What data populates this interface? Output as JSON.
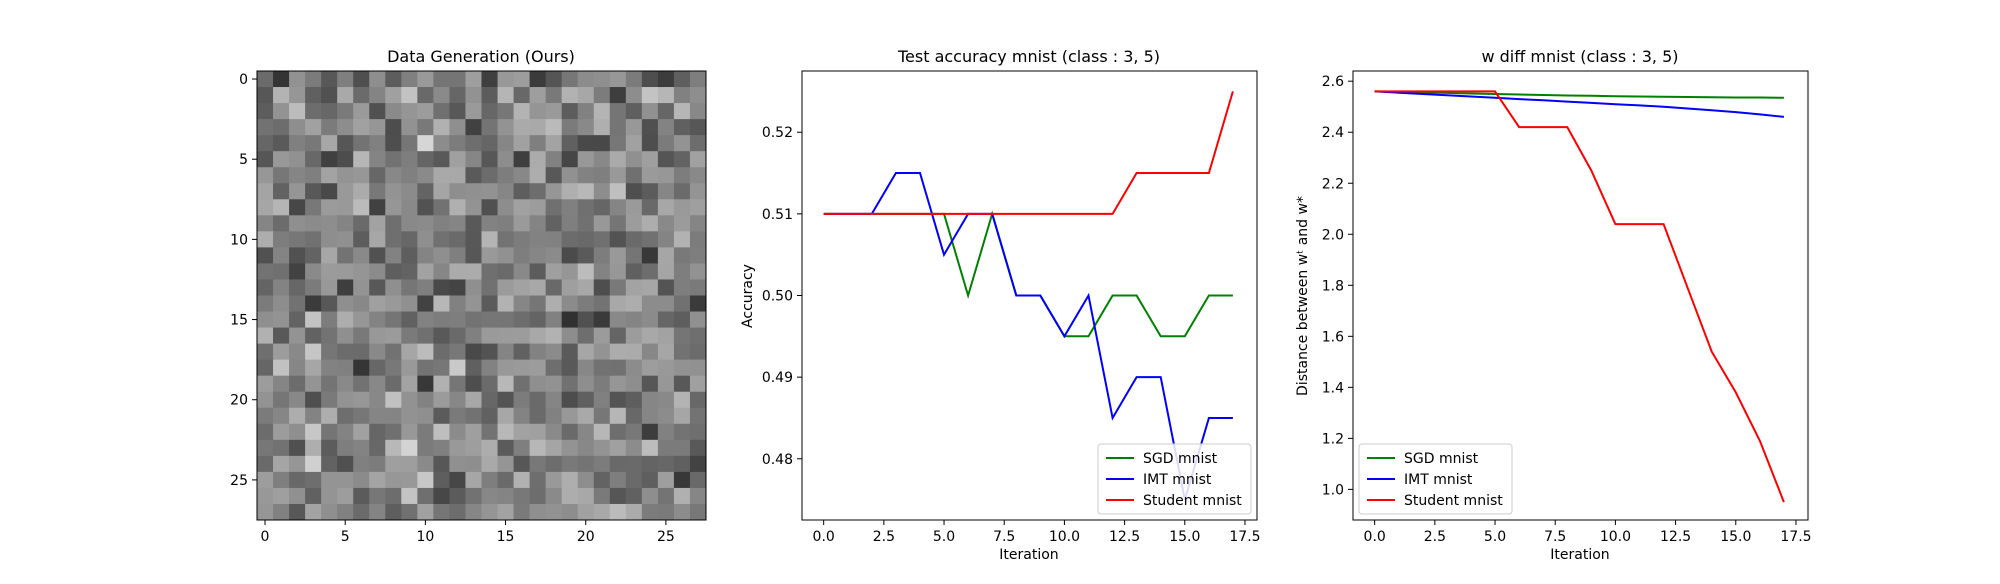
{
  "figure": {
    "background": "#ffffff"
  },
  "chart_data": [
    {
      "type": "heatmap",
      "title": "Data Generation (Ours)",
      "colormap": "gray",
      "rows": 28,
      "cols": 28,
      "x_ticks": [
        "0",
        "5",
        "10",
        "15",
        "20",
        "25"
      ],
      "y_ticks": [
        "0",
        "5",
        "10",
        "15",
        "20",
        "25"
      ],
      "values_note_seed": 20240517
    },
    {
      "type": "line",
      "title": "Test accuracy mnist (class : 3, 5)",
      "xlabel": "Iteration",
      "ylabel": "Accuracy",
      "xlim": [
        -0.9,
        18.0
      ],
      "ylim": [
        0.4725,
        0.5275
      ],
      "x_ticks": [
        "0.0",
        "2.5",
        "5.0",
        "7.5",
        "10.0",
        "12.5",
        "15.0",
        "17.5"
      ],
      "y_ticks": [
        "0.48",
        "0.49",
        "0.50",
        "0.51",
        "0.52"
      ],
      "legend_position": "lower right",
      "x": [
        0,
        1,
        2,
        3,
        4,
        5,
        6,
        7,
        8,
        9,
        10,
        11,
        12,
        13,
        14,
        15,
        16,
        17
      ],
      "series": [
        {
          "name": "SGD mnist",
          "color": "#008000",
          "values": [
            0.51,
            0.51,
            0.51,
            0.51,
            0.51,
            0.51,
            0.5,
            0.51,
            0.5,
            0.5,
            0.495,
            0.495,
            0.5,
            0.5,
            0.495,
            0.495,
            0.5,
            0.5
          ]
        },
        {
          "name": "IMT mnist",
          "color": "#0000ff",
          "values": [
            0.51,
            0.51,
            0.51,
            0.515,
            0.515,
            0.505,
            0.51,
            0.51,
            0.5,
            0.5,
            0.495,
            0.5,
            0.485,
            0.49,
            0.49,
            0.475,
            0.485,
            0.485
          ]
        },
        {
          "name": "Student mnist",
          "color": "#ff0000",
          "values": [
            0.51,
            0.51,
            0.51,
            0.51,
            0.51,
            0.51,
            0.51,
            0.51,
            0.51,
            0.51,
            0.51,
            0.51,
            0.51,
            0.515,
            0.515,
            0.515,
            0.515,
            0.525
          ]
        }
      ]
    },
    {
      "type": "line",
      "title": "w diff mnist (class : 3, 5)",
      "xlabel": "Iteration",
      "ylabel": "Distance between wᵗ and w*",
      "xlim": [
        -0.9,
        18.0
      ],
      "ylim": [
        0.88,
        2.64
      ],
      "x_ticks": [
        "0.0",
        "2.5",
        "5.0",
        "7.5",
        "10.0",
        "12.5",
        "15.0",
        "17.5"
      ],
      "y_ticks": [
        "1.0",
        "1.2",
        "1.4",
        "1.6",
        "1.8",
        "2.0",
        "2.2",
        "2.4",
        "2.6"
      ],
      "legend_position": "lower left",
      "x": [
        0,
        1,
        2,
        3,
        4,
        5,
        6,
        7,
        8,
        9,
        10,
        11,
        12,
        13,
        14,
        15,
        16,
        17
      ],
      "series": [
        {
          "name": "SGD mnist",
          "color": "#008000",
          "values": [
            2.56,
            2.558,
            2.556,
            2.554,
            2.552,
            2.55,
            2.548,
            2.546,
            2.544,
            2.543,
            2.541,
            2.54,
            2.539,
            2.538,
            2.537,
            2.536,
            2.536,
            2.535
          ]
        },
        {
          "name": "IMT mnist",
          "color": "#0000ff",
          "values": [
            2.56,
            2.555,
            2.55,
            2.545,
            2.54,
            2.535,
            2.53,
            2.525,
            2.52,
            2.515,
            2.51,
            2.505,
            2.5,
            2.493,
            2.486,
            2.479,
            2.47,
            2.46
          ]
        },
        {
          "name": "Student mnist",
          "color": "#ff0000",
          "values": [
            2.56,
            2.56,
            2.56,
            2.56,
            2.56,
            2.56,
            2.42,
            2.42,
            2.42,
            2.25,
            2.04,
            2.04,
            2.04,
            1.79,
            1.54,
            1.38,
            1.19,
            0.95
          ]
        }
      ]
    }
  ]
}
